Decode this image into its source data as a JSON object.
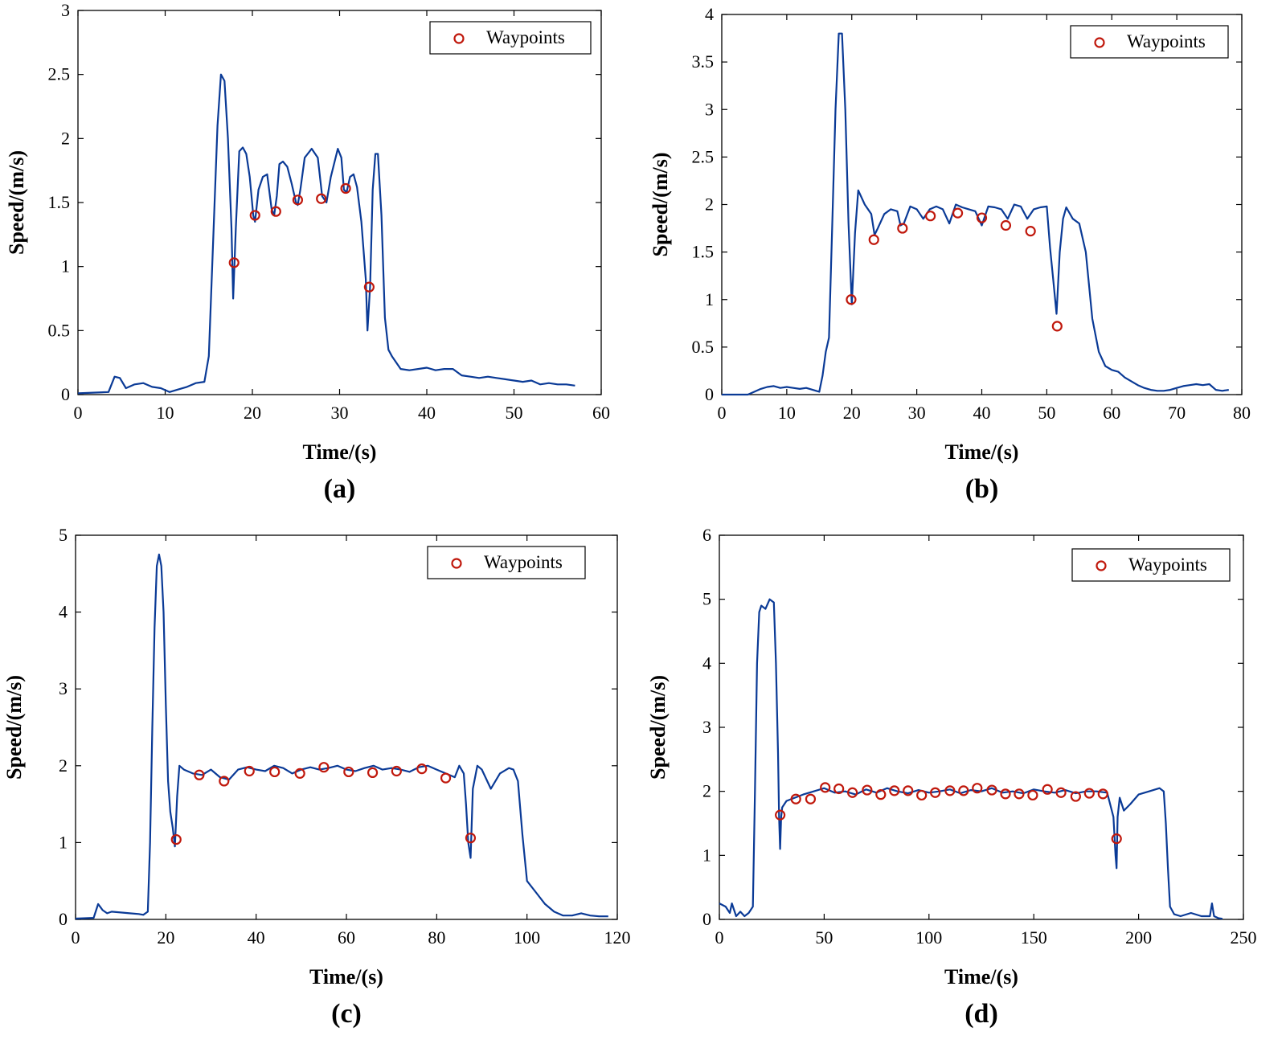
{
  "colors": {
    "line": "#0a3a96",
    "marker": "#c0180c",
    "axis": "#000000"
  },
  "chart_data": [
    {
      "type": "line",
      "panel_label": "(a)",
      "xlabel": "Time/(s)",
      "ylabel": "Speed/(m/s)",
      "xlim": [
        0,
        60
      ],
      "ylim": [
        0,
        3
      ],
      "xticks": [
        0,
        10,
        20,
        30,
        40,
        50,
        60
      ],
      "yticks": [
        0,
        0.5,
        1,
        1.5,
        2,
        2.5,
        3
      ],
      "legend": {
        "label": "Waypoints",
        "position": "top-right"
      },
      "line": {
        "x": [
          0,
          3.5,
          4.2,
          4.8,
          5.5,
          6.5,
          7.5,
          8.5,
          9.5,
          10.5,
          11.5,
          12.5,
          13.5,
          14.5,
          15,
          15.5,
          16,
          16.4,
          16.8,
          17.2,
          17.6,
          17.8,
          18.1,
          18.5,
          18.9,
          19.3,
          19.7,
          20.1,
          20.3,
          20.7,
          21.2,
          21.7,
          22.2,
          22.5,
          22.8,
          23.1,
          23.5,
          24,
          24.5,
          25,
          25.2,
          25.5,
          26,
          26.8,
          27.5,
          28,
          28.5,
          29,
          29.8,
          30.2,
          30.5,
          30.8,
          31.2,
          31.6,
          32,
          32.5,
          33,
          33.2,
          33.5,
          33.8,
          34.1,
          34.4,
          34.8,
          35.2,
          35.6,
          36,
          37,
          38,
          39,
          40,
          41,
          42,
          43,
          44,
          45,
          46,
          47,
          48,
          49,
          50,
          51,
          52,
          53,
          54,
          55,
          56,
          57
        ],
        "y": [
          0.01,
          0.02,
          0.14,
          0.13,
          0.05,
          0.08,
          0.09,
          0.06,
          0.05,
          0.02,
          0.04,
          0.06,
          0.09,
          0.1,
          0.3,
          1.2,
          2.1,
          2.5,
          2.45,
          2.0,
          1.3,
          0.75,
          1.3,
          1.9,
          1.93,
          1.88,
          1.7,
          1.4,
          1.35,
          1.6,
          1.7,
          1.72,
          1.45,
          1.4,
          1.55,
          1.8,
          1.82,
          1.78,
          1.65,
          1.5,
          1.48,
          1.6,
          1.85,
          1.92,
          1.85,
          1.55,
          1.5,
          1.7,
          1.92,
          1.85,
          1.6,
          1.58,
          1.7,
          1.72,
          1.62,
          1.35,
          0.9,
          0.5,
          0.85,
          1.6,
          1.88,
          1.88,
          1.4,
          0.6,
          0.35,
          0.3,
          0.2,
          0.19,
          0.2,
          0.21,
          0.19,
          0.2,
          0.2,
          0.15,
          0.14,
          0.13,
          0.14,
          0.13,
          0.12,
          0.11,
          0.1,
          0.11,
          0.08,
          0.09,
          0.08,
          0.08,
          0.07
        ]
      },
      "waypoints": {
        "x": [
          17.9,
          20.3,
          22.7,
          25.2,
          27.9,
          30.7,
          33.4
        ],
        "y": [
          1.03,
          1.4,
          1.43,
          1.52,
          1.53,
          1.61,
          0.84
        ]
      }
    },
    {
      "type": "line",
      "panel_label": "(b)",
      "xlabel": "Time/(s)",
      "ylabel": "Speed/(m/s)",
      "xlim": [
        0,
        80
      ],
      "ylim": [
        0,
        4
      ],
      "xticks": [
        0,
        10,
        20,
        30,
        40,
        50,
        60,
        70,
        80
      ],
      "yticks": [
        0,
        0.5,
        1,
        1.5,
        2,
        2.5,
        3,
        3.5,
        4
      ],
      "legend": {
        "label": "Waypoints",
        "position": "top-right"
      },
      "line": {
        "x": [
          0,
          4,
          5,
          6,
          7,
          8,
          9,
          10,
          11,
          12,
          13,
          14,
          15,
          15.5,
          16,
          16.5,
          17,
          17.5,
          18,
          18.5,
          19,
          19.5,
          20,
          20.5,
          21,
          22,
          23,
          23.5,
          24,
          25,
          26,
          27,
          27.5,
          28,
          29,
          30,
          31,
          32,
          33,
          34,
          35,
          36,
          37,
          38,
          39,
          40,
          41,
          42,
          43,
          44,
          45,
          46,
          47,
          48,
          49,
          50,
          50.5,
          51,
          51.5,
          52,
          52.5,
          53,
          54,
          55,
          56,
          57,
          58,
          59,
          60,
          61,
          62,
          63,
          64,
          65,
          66,
          67,
          68,
          69,
          70,
          71,
          72,
          73,
          74,
          75,
          76,
          77,
          78
        ],
        "y": [
          0.0,
          0.0,
          0.03,
          0.06,
          0.08,
          0.09,
          0.07,
          0.08,
          0.07,
          0.06,
          0.07,
          0.05,
          0.03,
          0.2,
          0.45,
          0.6,
          1.8,
          3.0,
          3.8,
          3.8,
          3.0,
          1.8,
          0.95,
          1.7,
          2.15,
          2.0,
          1.9,
          1.68,
          1.75,
          1.9,
          1.95,
          1.93,
          1.78,
          1.8,
          1.98,
          1.95,
          1.85,
          1.95,
          1.98,
          1.95,
          1.8,
          2.0,
          1.97,
          1.95,
          1.93,
          1.78,
          1.98,
          1.97,
          1.95,
          1.85,
          2.0,
          1.98,
          1.85,
          1.95,
          1.97,
          1.98,
          1.55,
          1.2,
          0.85,
          1.5,
          1.85,
          1.97,
          1.85,
          1.8,
          1.5,
          0.8,
          0.45,
          0.3,
          0.26,
          0.24,
          0.18,
          0.14,
          0.1,
          0.07,
          0.05,
          0.04,
          0.04,
          0.05,
          0.07,
          0.09,
          0.1,
          0.11,
          0.1,
          0.11,
          0.05,
          0.04,
          0.05
        ]
      },
      "waypoints": {
        "x": [
          19.9,
          23.4,
          27.8,
          32.1,
          36.3,
          40.0,
          43.7,
          47.5,
          51.6
        ],
        "y": [
          1.0,
          1.63,
          1.75,
          1.88,
          1.91,
          1.86,
          1.78,
          1.72,
          0.72
        ]
      }
    },
    {
      "type": "line",
      "panel_label": "(c)",
      "xlabel": "Time/(s)",
      "ylabel": "Speed/(m/s)",
      "xlim": [
        0,
        120
      ],
      "ylim": [
        0,
        5
      ],
      "xticks": [
        0,
        20,
        40,
        60,
        80,
        100,
        120
      ],
      "yticks": [
        0,
        1,
        2,
        3,
        4,
        5
      ],
      "legend": {
        "label": "Waypoints",
        "position": "top-right"
      },
      "line": {
        "x": [
          0,
          4,
          5,
          6,
          7,
          8,
          10,
          12,
          14,
          15,
          16,
          16.5,
          17,
          17.5,
          18,
          18.5,
          19,
          19.5,
          20,
          20.5,
          21,
          21.5,
          22,
          22.5,
          23,
          24,
          26,
          28,
          30,
          32,
          34,
          36,
          38,
          40,
          42,
          44,
          46,
          48,
          50,
          52,
          54,
          56,
          58,
          60,
          62,
          64,
          66,
          68,
          70,
          72,
          74,
          76,
          78,
          80,
          82,
          84,
          85,
          86,
          86.5,
          87,
          87.5,
          88,
          89,
          90,
          92,
          94,
          96,
          97,
          98,
          99,
          100,
          102,
          104,
          106,
          108,
          110,
          112,
          114,
          116,
          118
        ],
        "y": [
          0.01,
          0.02,
          0.2,
          0.12,
          0.08,
          0.1,
          0.09,
          0.08,
          0.07,
          0.06,
          0.1,
          1.0,
          2.5,
          3.8,
          4.6,
          4.75,
          4.6,
          4.0,
          2.8,
          1.8,
          1.4,
          1.2,
          0.95,
          1.6,
          2.0,
          1.95,
          1.9,
          1.88,
          1.95,
          1.85,
          1.82,
          1.95,
          1.98,
          1.95,
          1.93,
          2.0,
          1.97,
          1.9,
          1.95,
          1.98,
          1.95,
          1.97,
          2.0,
          1.95,
          1.93,
          1.97,
          2.0,
          1.95,
          1.97,
          1.95,
          1.92,
          1.98,
          2.0,
          1.95,
          1.9,
          1.85,
          2.0,
          1.9,
          1.5,
          1.0,
          0.8,
          1.7,
          2.0,
          1.95,
          1.7,
          1.9,
          1.97,
          1.95,
          1.8,
          1.1,
          0.5,
          0.35,
          0.2,
          0.1,
          0.05,
          0.05,
          0.08,
          0.05,
          0.04,
          0.04
        ]
      },
      "waypoints": {
        "x": [
          22.3,
          27.4,
          32.9,
          38.5,
          44.1,
          49.7,
          55.0,
          60.5,
          65.8,
          71.1,
          76.7,
          82.0,
          87.5
        ],
        "y": [
          1.04,
          1.88,
          1.8,
          1.93,
          1.92,
          1.9,
          1.98,
          1.92,
          1.91,
          1.93,
          1.96,
          1.84,
          1.06
        ]
      }
    },
    {
      "type": "line",
      "panel_label": "(d)",
      "xlabel": "Time/(s)",
      "ylabel": "Speed/(m/s)",
      "xlim": [
        0,
        250
      ],
      "ylim": [
        0,
        6
      ],
      "xticks": [
        0,
        50,
        100,
        150,
        200,
        250
      ],
      "yticks": [
        0,
        1,
        2,
        3,
        4,
        5,
        6
      ],
      "legend": {
        "label": "Waypoints",
        "position": "top-right"
      },
      "line": {
        "x": [
          0,
          3,
          5,
          6,
          8,
          10,
          12,
          14,
          16,
          17,
          18,
          19,
          20,
          22,
          24,
          26,
          27,
          28,
          28.5,
          29,
          29.5,
          30,
          32,
          36,
          40,
          45,
          50,
          55,
          60,
          65,
          70,
          75,
          80,
          85,
          90,
          95,
          100,
          105,
          110,
          115,
          120,
          125,
          130,
          135,
          140,
          145,
          150,
          155,
          160,
          165,
          170,
          175,
          180,
          185,
          188,
          189,
          189.5,
          190,
          191,
          193,
          196,
          200,
          205,
          210,
          212,
          213,
          214,
          215,
          217,
          220,
          225,
          230,
          234,
          235,
          236,
          238,
          240
        ],
        "y": [
          0.25,
          0.2,
          0.1,
          0.25,
          0.05,
          0.12,
          0.05,
          0.1,
          0.2,
          2.0,
          4.0,
          4.8,
          4.9,
          4.85,
          5.0,
          4.95,
          4.0,
          2.6,
          1.6,
          1.1,
          1.6,
          1.75,
          1.85,
          1.9,
          1.95,
          2.0,
          2.05,
          1.98,
          2.0,
          1.95,
          2.03,
          1.98,
          2.05,
          2.0,
          1.97,
          2.02,
          1.98,
          2.0,
          2.03,
          1.97,
          2.02,
          2.0,
          2.05,
          1.98,
          2.0,
          1.97,
          2.03,
          2.0,
          1.98,
          2.02,
          1.97,
          2.0,
          2.0,
          1.98,
          1.6,
          1.0,
          0.8,
          1.6,
          1.9,
          1.7,
          1.8,
          1.95,
          2.0,
          2.05,
          2.0,
          1.5,
          0.8,
          0.2,
          0.08,
          0.05,
          0.1,
          0.05,
          0.05,
          0.25,
          0.05,
          0.02,
          0.01
        ]
      },
      "waypoints": {
        "x": [
          29,
          36.5,
          43.5,
          50.5,
          57,
          63.5,
          70.5,
          77,
          83.5,
          90,
          96.5,
          103,
          110,
          116.5,
          123,
          130,
          136.5,
          143,
          149.5,
          156.5,
          163,
          170,
          176.5,
          183,
          189.5
        ],
        "y": [
          1.63,
          1.88,
          1.88,
          2.06,
          2.04,
          1.98,
          2.02,
          1.95,
          2.01,
          2.01,
          1.94,
          1.98,
          2.01,
          2.01,
          2.05,
          2.02,
          1.96,
          1.96,
          1.94,
          2.03,
          1.98,
          1.92,
          1.97,
          1.96,
          1.26
        ]
      }
    }
  ]
}
